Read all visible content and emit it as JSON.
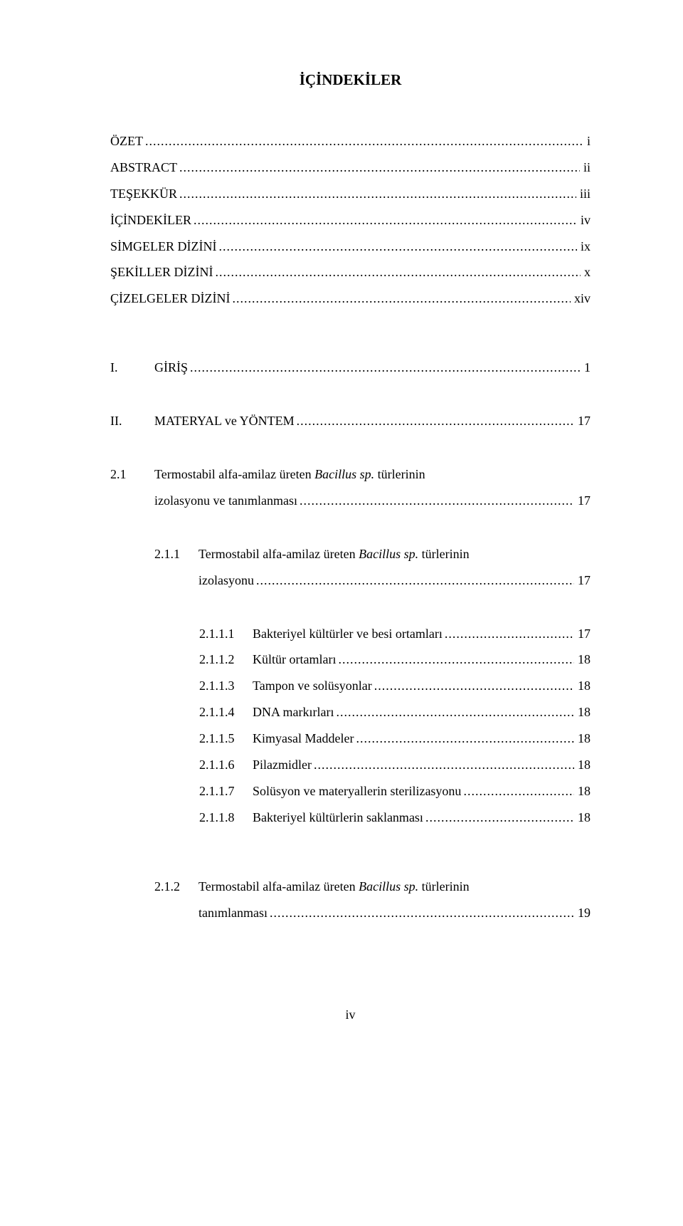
{
  "title": "İÇİNDEKİLER",
  "entries": [
    {
      "indent": 0,
      "num": "",
      "labelParts": [
        {
          "text": "ÖZET",
          "italic": false
        }
      ],
      "leaderStyle": "dots-mixed",
      "page": "i",
      "numWidth": 0
    },
    {
      "indent": 0,
      "num": "",
      "labelParts": [
        {
          "text": "ABSTRACT",
          "italic": false
        }
      ],
      "page": "ii",
      "numWidth": 0
    },
    {
      "indent": 0,
      "num": "",
      "labelParts": [
        {
          "text": "TEŞEKKÜR",
          "italic": false
        }
      ],
      "page": "iii",
      "numWidth": 0
    },
    {
      "indent": 0,
      "num": "",
      "labelParts": [
        {
          "text": "İÇİNDEKİLER",
          "italic": false
        }
      ],
      "page": "iv",
      "numWidth": 0
    },
    {
      "indent": 0,
      "num": "",
      "labelParts": [
        {
          "text": "SİMGELER DİZİNİ",
          "italic": false
        }
      ],
      "page": "ix",
      "numWidth": 0
    },
    {
      "indent": 0,
      "num": "",
      "labelParts": [
        {
          "text": "ŞEKİLLER DİZİNİ",
          "italic": false
        }
      ],
      "page": "x",
      "numWidth": 0
    },
    {
      "indent": 0,
      "num": "",
      "labelParts": [
        {
          "text": "ÇİZELGELER DİZİNİ",
          "italic": false
        }
      ],
      "page": "xiv",
      "numWidth": 0
    },
    {
      "gap": "xlarge"
    },
    {
      "indent": 0,
      "num": "I.",
      "labelParts": [
        {
          "text": "GİRİŞ",
          "italic": false
        }
      ],
      "leaderStyle": "sparse",
      "page": "1",
      "numWidth": 62
    },
    {
      "gap": "large"
    },
    {
      "indent": 0,
      "num": "II.",
      "labelParts": [
        {
          "text": "MATERYAL ve YÖNTEM",
          "italic": false
        }
      ],
      "page": "17",
      "numWidth": 62
    },
    {
      "gap": "large"
    },
    {
      "indent": 0,
      "num": "2.1",
      "labelParts": [
        {
          "text": "Termostabil alfa-amilaz üreten ",
          "italic": false
        },
        {
          "text": "Bacillus sp.",
          "italic": true
        },
        {
          "text": " türlerinin",
          "italic": false
        }
      ],
      "nopage": true,
      "numWidth": 62
    },
    {
      "indent": 0,
      "contLine": true,
      "labelParts": [
        {
          "text": "izolasyonu ve tanımlanması",
          "italic": false
        }
      ],
      "page": "17",
      "numWidth": 62
    },
    {
      "gap": "large"
    },
    {
      "indent": 2,
      "num": "2.1.1",
      "labelParts": [
        {
          "text": "Termostabil alfa-amilaz üreten ",
          "italic": false
        },
        {
          "text": "Bacillus sp.",
          "italic": true
        },
        {
          "text": " türlerinin",
          "italic": false
        }
      ],
      "nopage": true,
      "numWidth": 62
    },
    {
      "indent": 2,
      "contLine": true,
      "labelParts": [
        {
          "text": "izolasyonu",
          "italic": false
        }
      ],
      "page": "17",
      "numWidth": 62
    },
    {
      "gap": "large"
    },
    {
      "indent": 3,
      "num": "2.1.1.1",
      "labelParts": [
        {
          "text": "Bakteriyel kültürler ve besi ortamları",
          "italic": false
        }
      ],
      "page": "17",
      "numWidth": 75
    },
    {
      "indent": 3,
      "num": "2.1.1.2",
      "labelParts": [
        {
          "text": "Kültür ortamları",
          "italic": false
        }
      ],
      "page": "18",
      "numWidth": 75
    },
    {
      "indent": 3,
      "num": "2.1.1.3",
      "labelParts": [
        {
          "text": "Tampon ve solüsyonlar",
          "italic": false
        }
      ],
      "page": "18",
      "numWidth": 75
    },
    {
      "indent": 3,
      "num": "2.1.1.4",
      "labelParts": [
        {
          "text": "DNA markırları",
          "italic": false
        }
      ],
      "page": "18",
      "numWidth": 75
    },
    {
      "indent": 3,
      "num": "2.1.1.5",
      "labelParts": [
        {
          "text": "Kimyasal Maddeler",
          "italic": false
        }
      ],
      "page": "18",
      "numWidth": 75
    },
    {
      "indent": 3,
      "num": "2.1.1.6",
      "labelParts": [
        {
          "text": "Pilazmidler",
          "italic": false
        }
      ],
      "page": "18",
      "numWidth": 75
    },
    {
      "indent": 3,
      "num": "2.1.1.7",
      "labelParts": [
        {
          "text": "Solüsyon ve materyallerin sterilizasyonu",
          "italic": false
        }
      ],
      "page": "18",
      "numWidth": 75
    },
    {
      "indent": 3,
      "num": "2.1.1.8",
      "labelParts": [
        {
          "text": "Bakteriyel kültürlerin saklanması",
          "italic": false
        }
      ],
      "page": "18",
      "numWidth": 75
    },
    {
      "gap": "xlarge"
    },
    {
      "indent": 2,
      "num": "2.1.2",
      "labelParts": [
        {
          "text": "Termostabil alfa-amilaz üreten ",
          "italic": false
        },
        {
          "text": "Bacillus sp.",
          "italic": true
        },
        {
          "text": " türlerinin",
          "italic": false
        }
      ],
      "nopage": true,
      "numWidth": 62
    },
    {
      "indent": 2,
      "contLine": true,
      "labelParts": [
        {
          "text": "tanımlanması",
          "italic": false
        }
      ],
      "page": "19",
      "numWidth": 62
    }
  ],
  "footer": "iv",
  "leaders": {
    "dots": "........................................................................................................................................................................",
    "sparse": "…………………..…………………………………………………………...",
    "ozet": "…………………………………………………………………….......",
    "icindekiler_tail": "…."
  }
}
